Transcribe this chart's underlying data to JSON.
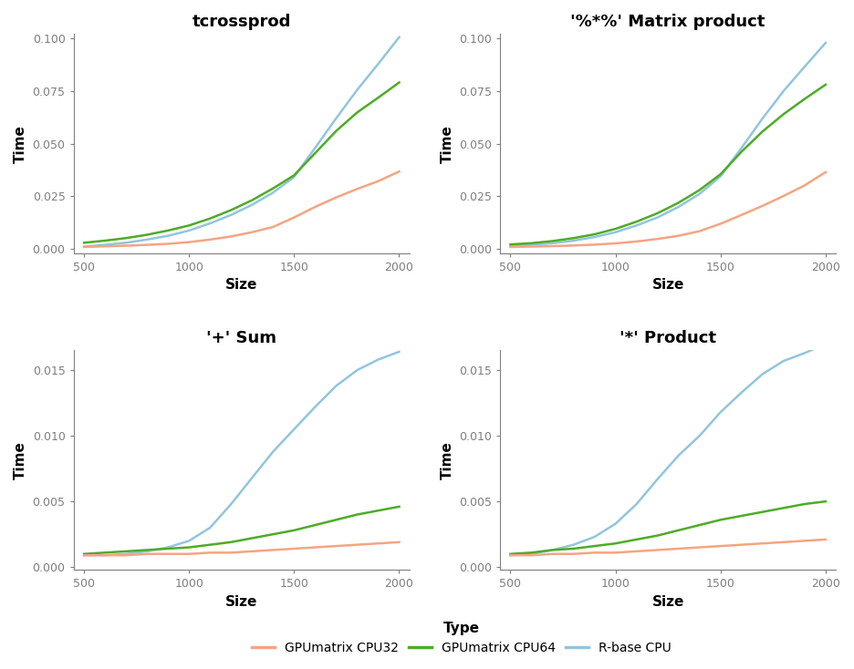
{
  "titles": [
    "tcrossprod",
    "'%*%' Matrix product",
    "'+' Sum",
    "'*' Product"
  ],
  "x": [
    500,
    600,
    700,
    800,
    900,
    1000,
    1100,
    1200,
    1300,
    1400,
    1500,
    1600,
    1700,
    1800,
    1900,
    2000
  ],
  "series": {
    "tcrossprod": {
      "cpu32": [
        0.001,
        0.0013,
        0.0016,
        0.002,
        0.0025,
        0.0033,
        0.0045,
        0.006,
        0.008,
        0.0105,
        0.015,
        0.02,
        0.0245,
        0.0285,
        0.0322,
        0.0368
      ],
      "cpu64": [
        0.003,
        0.004,
        0.0052,
        0.0068,
        0.0088,
        0.0112,
        0.0145,
        0.0185,
        0.0232,
        0.0288,
        0.035,
        0.0455,
        0.056,
        0.0648,
        0.0718,
        0.079
      ],
      "rbase": [
        0.0012,
        0.002,
        0.003,
        0.0045,
        0.0063,
        0.0088,
        0.0122,
        0.0162,
        0.021,
        0.0268,
        0.0342,
        0.048,
        0.062,
        0.0755,
        0.0878,
        0.1005
      ]
    },
    "matprod": {
      "cpu32": [
        0.001,
        0.0012,
        0.0014,
        0.0017,
        0.0021,
        0.0027,
        0.0036,
        0.0048,
        0.0063,
        0.0085,
        0.012,
        0.0162,
        0.0205,
        0.0252,
        0.0302,
        0.0365
      ],
      "cpu64": [
        0.0022,
        0.0028,
        0.0038,
        0.0052,
        0.007,
        0.0096,
        0.013,
        0.017,
        0.022,
        0.028,
        0.0355,
        0.0462,
        0.0558,
        0.064,
        0.0712,
        0.078
      ],
      "rbase": [
        0.0015,
        0.002,
        0.0028,
        0.004,
        0.0057,
        0.008,
        0.0112,
        0.015,
        0.02,
        0.0262,
        0.0345,
        0.048,
        0.062,
        0.075,
        0.0865,
        0.0978
      ]
    },
    "sum": {
      "cpu32": [
        0.0009,
        0.0009,
        0.0009,
        0.001,
        0.001,
        0.001,
        0.0011,
        0.0011,
        0.0012,
        0.0013,
        0.0014,
        0.0015,
        0.0016,
        0.0017,
        0.0018,
        0.0019
      ],
      "cpu64": [
        0.001,
        0.0011,
        0.0012,
        0.0013,
        0.0014,
        0.0015,
        0.0017,
        0.0019,
        0.0022,
        0.0025,
        0.0028,
        0.0032,
        0.0036,
        0.004,
        0.0043,
        0.0046
      ],
      "rbase": [
        0.0009,
        0.0009,
        0.001,
        0.0012,
        0.0015,
        0.002,
        0.003,
        0.0048,
        0.0068,
        0.0088,
        0.0105,
        0.0122,
        0.0138,
        0.015,
        0.0158,
        0.0164
      ]
    },
    "prod": {
      "cpu32": [
        0.0009,
        0.0009,
        0.001,
        0.001,
        0.0011,
        0.0011,
        0.0012,
        0.0013,
        0.0014,
        0.0015,
        0.0016,
        0.0017,
        0.0018,
        0.0019,
        0.002,
        0.0021
      ],
      "cpu64": [
        0.001,
        0.0011,
        0.0013,
        0.0014,
        0.0016,
        0.0018,
        0.0021,
        0.0024,
        0.0028,
        0.0032,
        0.0036,
        0.0039,
        0.0042,
        0.0045,
        0.0048,
        0.005
      ],
      "rbase": [
        0.0009,
        0.001,
        0.0013,
        0.0017,
        0.0023,
        0.0033,
        0.0048,
        0.0067,
        0.0085,
        0.01,
        0.0118,
        0.0133,
        0.0147,
        0.0157,
        0.0163,
        0.017
      ]
    }
  },
  "colors": {
    "cpu32": "#F4A582",
    "cpu64": "#4DAC26",
    "rbase": "#92C5DE"
  },
  "legend_labels": [
    "GPUmatrix CPU32",
    "GPUmatrix CPU64",
    "R-base CPU"
  ],
  "ylabel": "Time",
  "xlabel": "Size",
  "legend_title": "Type",
  "ylims": {
    "tcrossprod": [
      -0.002,
      0.102
    ],
    "matprod": [
      -0.002,
      0.102
    ],
    "sum": [
      -0.0002,
      0.0165
    ],
    "prod": [
      -0.0002,
      0.0165
    ]
  },
  "yticks": {
    "tcrossprod": [
      0.0,
      0.025,
      0.05,
      0.075,
      0.1
    ],
    "matprod": [
      0.0,
      0.025,
      0.05,
      0.075,
      0.1
    ],
    "sum": [
      0.0,
      0.005,
      0.01,
      0.015
    ],
    "prod": [
      0.0,
      0.005,
      0.01,
      0.015
    ]
  },
  "xticks": [
    500,
    1000,
    1500,
    2000
  ],
  "bg_color": "#FFFFFF",
  "tick_color": "#7F7F7F",
  "spine_color": "#7F7F7F",
  "label_color": "#000000",
  "title_color": "#000000",
  "line_width": 1.8
}
